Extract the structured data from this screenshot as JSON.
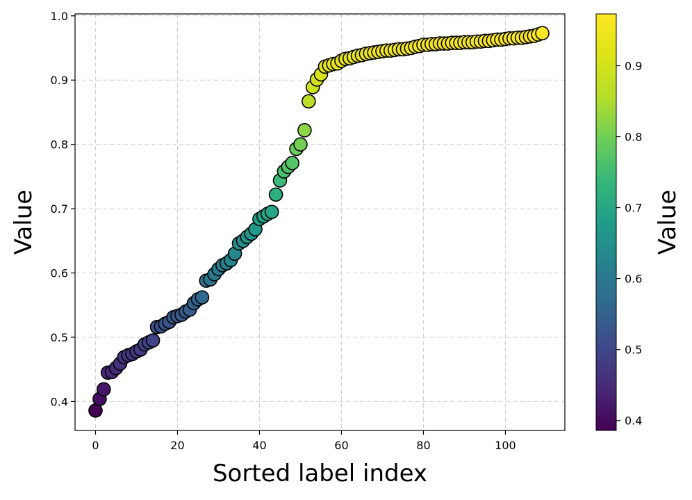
{
  "chart_data": {
    "type": "scatter",
    "title": "",
    "xlabel": "Sorted label index",
    "ylabel": "Value",
    "xlim": [
      -5,
      114.5
    ],
    "ylim": [
      0.355,
      1.003
    ],
    "xticks": [
      0,
      20,
      40,
      60,
      80,
      100
    ],
    "yticks": [
      0.4,
      0.5,
      0.6,
      0.7,
      0.8,
      0.9,
      1.0
    ],
    "grid": true,
    "colormap": "viridis",
    "marker_edge_color": "#000000",
    "colorbar": {
      "label": "Value",
      "range": [
        0.386,
        0.973
      ],
      "ticks": [
        0.4,
        0.5,
        0.6,
        0.7,
        0.8,
        0.9
      ]
    },
    "x": [
      0,
      1,
      2,
      3,
      4,
      5,
      6,
      7,
      8,
      9,
      10,
      11,
      12,
      13,
      14,
      15,
      16,
      17,
      18,
      19,
      20,
      21,
      22,
      23,
      24,
      25,
      26,
      27,
      28,
      29,
      30,
      31,
      32,
      33,
      34,
      35,
      36,
      37,
      38,
      39,
      40,
      41,
      42,
      43,
      44,
      45,
      46,
      47,
      48,
      49,
      50,
      51,
      52,
      53,
      54,
      55,
      56,
      57,
      58,
      59,
      60,
      61,
      62,
      63,
      64,
      65,
      66,
      67,
      68,
      69,
      70,
      71,
      72,
      73,
      74,
      75,
      76,
      77,
      78,
      79,
      80,
      81,
      82,
      83,
      84,
      85,
      86,
      87,
      88,
      89,
      90,
      91,
      92,
      93,
      94,
      95,
      96,
      97,
      98,
      99,
      100,
      101,
      102,
      103,
      104,
      105,
      106,
      107,
      108,
      109
    ],
    "values": [
      0.386,
      0.404,
      0.419,
      0.445,
      0.446,
      0.452,
      0.459,
      0.469,
      0.472,
      0.474,
      0.478,
      0.481,
      0.489,
      0.492,
      0.495,
      0.516,
      0.517,
      0.521,
      0.524,
      0.531,
      0.533,
      0.535,
      0.54,
      0.543,
      0.553,
      0.559,
      0.562,
      0.588,
      0.59,
      0.598,
      0.606,
      0.612,
      0.615,
      0.62,
      0.63,
      0.646,
      0.65,
      0.656,
      0.661,
      0.668,
      0.684,
      0.688,
      0.692,
      0.695,
      0.722,
      0.744,
      0.758,
      0.765,
      0.771,
      0.793,
      0.8,
      0.822,
      0.867,
      0.889,
      0.901,
      0.909,
      0.921,
      0.923,
      0.925,
      0.926,
      0.93,
      0.933,
      0.934,
      0.936,
      0.938,
      0.939,
      0.941,
      0.942,
      0.943,
      0.944,
      0.945,
      0.946,
      0.946,
      0.947,
      0.948,
      0.948,
      0.949,
      0.95,
      0.952,
      0.953,
      0.955,
      0.955,
      0.956,
      0.956,
      0.957,
      0.957,
      0.957,
      0.958,
      0.958,
      0.958,
      0.959,
      0.959,
      0.959,
      0.96,
      0.96,
      0.961,
      0.961,
      0.962,
      0.963,
      0.963,
      0.964,
      0.965,
      0.965,
      0.966,
      0.966,
      0.967,
      0.968,
      0.969,
      0.971,
      0.973
    ]
  }
}
